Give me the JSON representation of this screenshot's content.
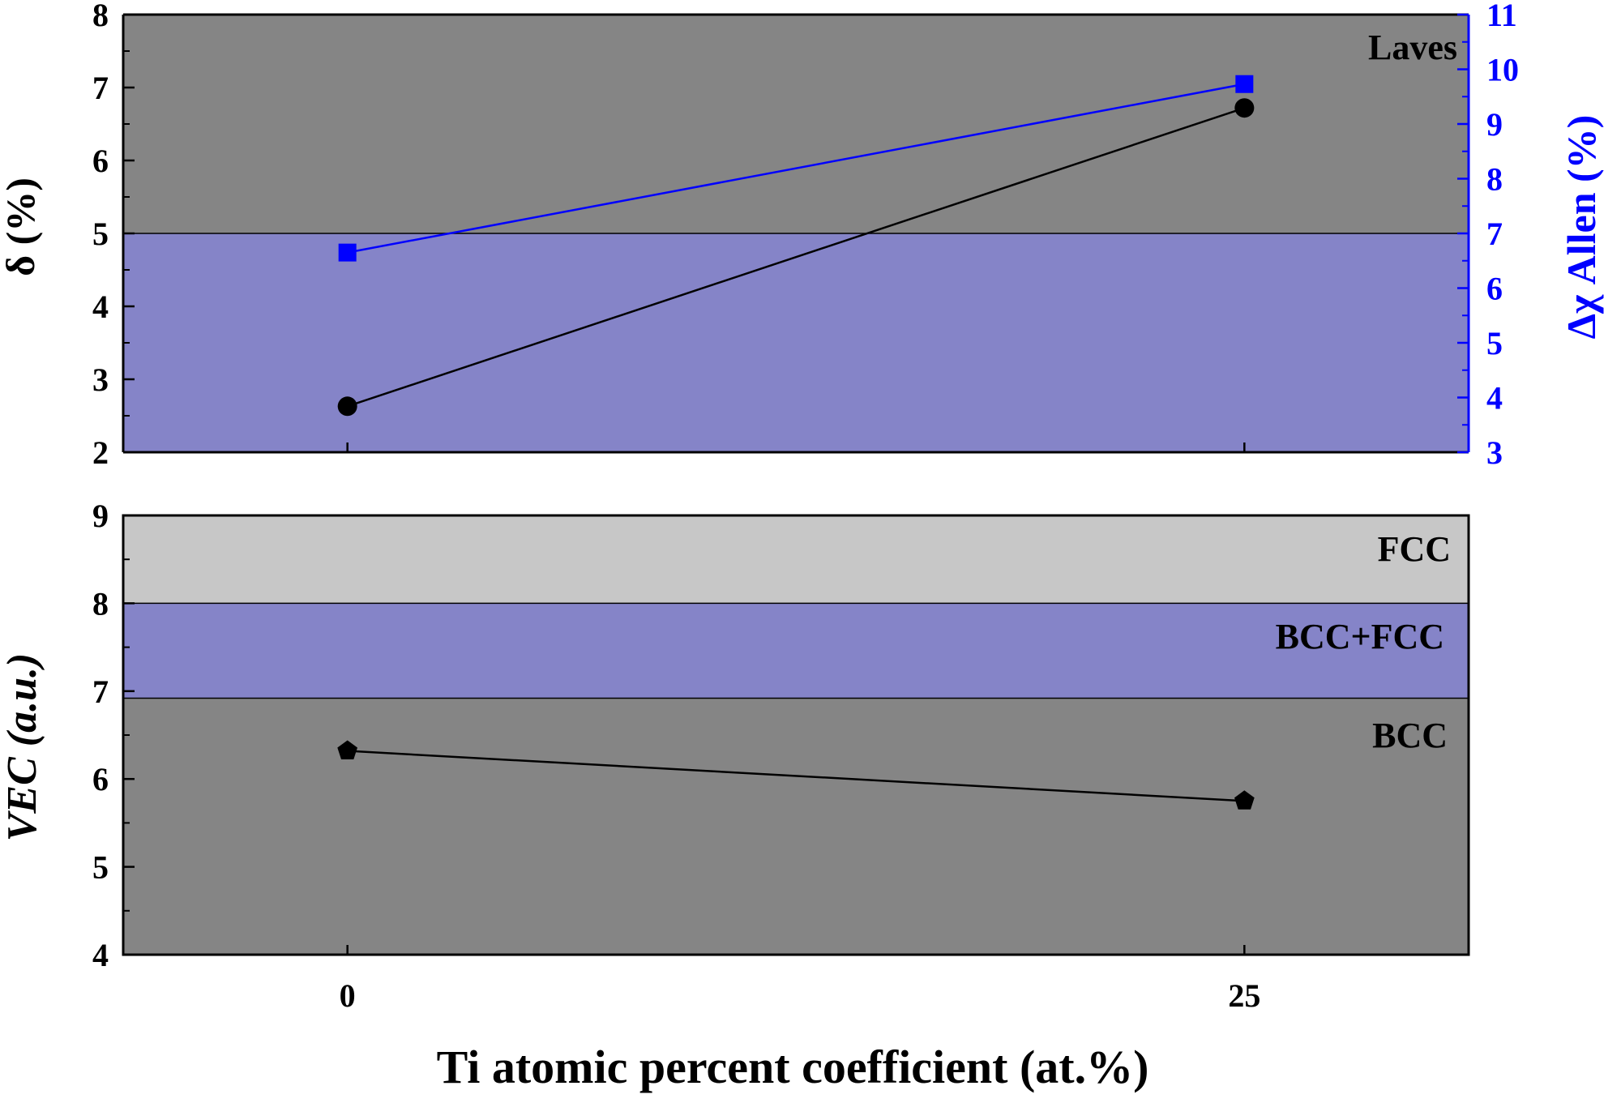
{
  "chart_data": [
    {
      "id": "top",
      "type": "line",
      "x_categories": [
        "0",
        "25"
      ],
      "x": [
        0,
        25
      ],
      "xlim": [
        -6.25,
        31.25
      ],
      "ylabel": "δ (%)",
      "ylim": [
        2,
        8
      ],
      "yticks": [
        2,
        3,
        4,
        5,
        6,
        7,
        8
      ],
      "y2label": "Δχ Allen (%)",
      "y2lim": [
        3,
        11
      ],
      "y2ticks": [
        3,
        4,
        5,
        6,
        7,
        8,
        9,
        10,
        11
      ],
      "regions": [
        {
          "name": "Laves",
          "from": 5,
          "to": 8,
          "color": "#858585"
        },
        {
          "name": "",
          "from": 2,
          "to": 5,
          "color": "#8584c8"
        }
      ],
      "region_label": "Laves",
      "series": [
        {
          "name": "δ",
          "axis": "left",
          "marker": "circle",
          "color": "#000000",
          "values": [
            2.63,
            6.72
          ]
        },
        {
          "name": "Δχ Allen",
          "axis": "right",
          "marker": "square",
          "color": "#0000ff",
          "values": [
            6.65,
            9.73
          ]
        }
      ],
      "right_axis_color": "#0000ff"
    },
    {
      "id": "bottom",
      "type": "line",
      "x_categories": [
        "0",
        "25"
      ],
      "x": [
        0,
        25
      ],
      "xlim": [
        -6.25,
        31.25
      ],
      "xlabel": "Ti atomic percent coefficient (at.%)",
      "ylabel": "VEC (a.u.)",
      "ylim": [
        4,
        9
      ],
      "yticks": [
        4,
        5,
        6,
        7,
        8,
        9
      ],
      "regions": [
        {
          "name": "FCC",
          "from": 8,
          "to": 9,
          "color": "#c7c7c7"
        },
        {
          "name": "BCC+FCC",
          "from": 6.92,
          "to": 8,
          "color": "#8584c8"
        },
        {
          "name": "BCC",
          "from": 4,
          "to": 6.92,
          "color": "#858585"
        }
      ],
      "region_labels": [
        "FCC",
        "BCC+FCC",
        "BCC"
      ],
      "series": [
        {
          "name": "VEC",
          "axis": "left",
          "marker": "pentagon",
          "color": "#000000",
          "values": [
            6.32,
            5.75
          ]
        }
      ]
    }
  ]
}
